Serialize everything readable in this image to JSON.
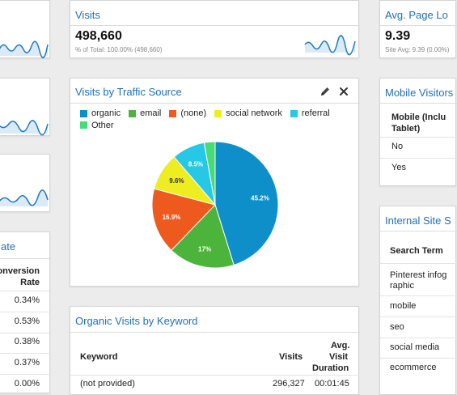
{
  "visits_card": {
    "title": "Visits",
    "value": "498,660",
    "subtitle": "% of Total: 100.00% (498,660)"
  },
  "avg_page_card": {
    "title": "Avg. Page Lo",
    "value": "9.39",
    "subtitle": "Site Avg: 9.39 (0.00%)"
  },
  "traffic_card": {
    "title": "Visits by Traffic Source",
    "edit_icon": "pencil-icon",
    "close_icon": "close-icon"
  },
  "chart_data": {
    "type": "pie",
    "categories": [
      "organic",
      "email",
      "(none)",
      "social network",
      "referral",
      "Other"
    ],
    "values": [
      45.2,
      17,
      16.9,
      9.6,
      8.5,
      2.8
    ],
    "labels": [
      "45.2%",
      "17%",
      "16.9%",
      "9.6%",
      "8.5%",
      ""
    ],
    "colors": [
      "#0f8fc9",
      "#4cb33b",
      "#ee5a1d",
      "#eded1f",
      "#26c8e6",
      "#48db78"
    ],
    "legend_position": "top"
  },
  "keyword_card": {
    "title": "Organic Visits by Keyword",
    "headers": {
      "keyword": "Keyword",
      "visits": "Visits",
      "duration_l1": "Avg.",
      "duration_l2": "Visit",
      "duration_l3": "Duration"
    },
    "partial_row": {
      "keyword": "(not provided)",
      "visits": "296,327",
      "duration": "00:01:45"
    }
  },
  "mobile_card": {
    "title": "Mobile Visitors",
    "header_l1": "Mobile (Inclu",
    "header_l2": "Tablet)",
    "rows": [
      "No",
      "Yes"
    ]
  },
  "site_search_card": {
    "title": "Internal Site S",
    "header": "Search Term",
    "rows": [
      "Pinterest infog",
      "raphic",
      "mobile",
      "seo",
      "social media",
      "ecommerce"
    ]
  },
  "conversion_card": {
    "title": "ate",
    "header_l1": "onversion",
    "header_l2": "Rate",
    "rows": [
      "0.34%",
      "0.53%",
      "0.38%",
      "0.37%",
      "0.00%"
    ]
  }
}
